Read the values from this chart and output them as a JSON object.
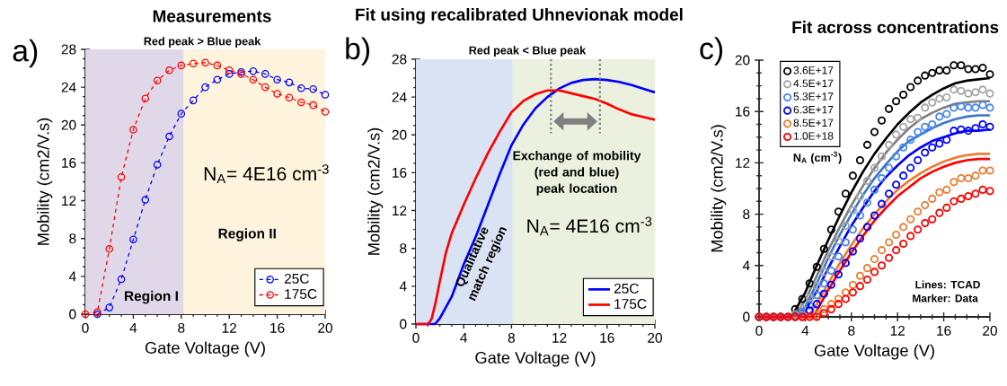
{
  "chart_data": [
    {
      "type": "line",
      "title": "Measurements",
      "subtitle": "Red peak > Blue peak",
      "xlabel": "Gate Voltage (V)",
      "ylabel": "Mobility (cm2/V.s)",
      "xlim": [
        0,
        20
      ],
      "ylim": [
        0,
        28
      ],
      "xticks": [
        0,
        4,
        8,
        12,
        16,
        20
      ],
      "yticks": [
        0,
        4,
        8,
        12,
        16,
        20,
        24,
        28
      ],
      "marker": "circle",
      "line_style": "dashed",
      "legend": "bottom right",
      "bands": [
        {
          "axis": "x",
          "from": 0,
          "to": 8.2,
          "color": "#e0d7e8"
        },
        {
          "axis": "x",
          "from": 8.2,
          "to": 20,
          "color": "#fef4dd"
        }
      ],
      "annotations": [
        "a)",
        "N$_{A}$= 4E16 cm$^{-3}$",
        "Region I",
        "Region II"
      ],
      "series": [
        {
          "name": "25C",
          "color": "#0000ff",
          "x": [
            1,
            2,
            3,
            4,
            5,
            6,
            7,
            8,
            9,
            10,
            11,
            12,
            13,
            14,
            15,
            16,
            17,
            18,
            19,
            20
          ],
          "values": [
            0.0,
            0.7,
            3.7,
            7.9,
            12.1,
            15.8,
            18.8,
            21.2,
            22.6,
            24.0,
            24.8,
            25.4,
            25.6,
            25.7,
            25.4,
            24.8,
            24.5,
            23.9,
            23.8,
            23.2
          ]
        },
        {
          "name": "175C",
          "color": "#ff0000",
          "x": [
            0,
            1,
            2,
            3,
            4,
            5,
            6,
            7,
            8,
            9,
            10,
            11,
            12,
            13,
            14,
            15,
            16,
            17,
            18,
            19,
            20
          ],
          "values": [
            0.0,
            0.2,
            6.9,
            14.5,
            19.5,
            22.8,
            24.7,
            25.8,
            26.3,
            26.5,
            26.6,
            26.3,
            25.8,
            25.4,
            24.8,
            24.0,
            23.3,
            22.9,
            22.4,
            22.1,
            21.4
          ]
        }
      ]
    },
    {
      "type": "line",
      "title": "Fit using recalibrated Uhnevionak model",
      "subtitle": "Red peak < Blue peak",
      "xlabel": "Gate Voltage (V)",
      "ylabel": "Mobility (cm2/V.s)",
      "xlim": [
        0,
        20
      ],
      "ylim": [
        0,
        28
      ],
      "xticks": [
        0,
        4,
        8,
        12,
        16,
        20
      ],
      "yticks": [
        0,
        4,
        8,
        12,
        16,
        20,
        24,
        28
      ],
      "line_style": "solid",
      "legend": "bottom right",
      "bands": [
        {
          "axis": "x",
          "from": 0,
          "to": 8.1,
          "color": "#dae3f3"
        },
        {
          "axis": "x",
          "from": 8.1,
          "to": 20,
          "color": "#ebf1de"
        }
      ],
      "ref_lines": [
        {
          "axis": "x",
          "value": 11.3,
          "color": "#808080",
          "line_style": "dotted"
        },
        {
          "axis": "x",
          "value": 15.4,
          "color": "#808080",
          "line_style": "dotted"
        }
      ],
      "annotations": [
        "b)",
        "Qualitative match region",
        "Exchange of mobility (red and blue) peak location",
        "N$_{A}$= 4E16 cm$^{-3}$"
      ],
      "series": [
        {
          "name": "25C",
          "color": "#0000ff",
          "x": [
            0,
            1.6,
            2,
            3,
            4,
            5,
            6,
            7,
            8,
            9,
            10,
            11,
            12,
            13,
            14,
            15,
            16,
            17,
            18,
            19,
            20
          ],
          "values": [
            0,
            0,
            0.6,
            2.9,
            6.3,
            9.2,
            12.5,
            15.8,
            18.9,
            21.1,
            22.8,
            24.0,
            24.9,
            25.5,
            25.8,
            25.9,
            25.8,
            25.6,
            25.3,
            24.9,
            24.5
          ]
        },
        {
          "name": "175C",
          "color": "#ff0000",
          "x": [
            0,
            1,
            1.3,
            1.6,
            2,
            2.5,
            3,
            4,
            5,
            6,
            7,
            8,
            9,
            10,
            11,
            12,
            13,
            14,
            15,
            16,
            17,
            18,
            19,
            20
          ],
          "values": [
            0,
            0,
            0.5,
            2.0,
            4.5,
            7.5,
            9.6,
            12.6,
            15.4,
            18.0,
            20.3,
            22.4,
            23.6,
            24.3,
            24.7,
            24.7,
            24.4,
            24.1,
            23.8,
            23.3,
            22.7,
            22.2,
            21.9,
            21.6
          ]
        }
      ]
    },
    {
      "type": "scatter",
      "title": "Fit across concentrations",
      "xlabel": "Gate Voltage (V)",
      "ylabel": "Mobility (cm2/V.s)",
      "xlim": [
        0,
        20
      ],
      "ylim": [
        0,
        20
      ],
      "xticks": [
        0,
        4,
        8,
        12,
        16,
        20
      ],
      "yticks": [
        0,
        4,
        8,
        12,
        16,
        20
      ],
      "marker": "circle",
      "legend": "top left",
      "legend_title": "N$_{A}$ (cm$^{-3}$)",
      "annotations": [
        "c)",
        "Lines: TCAD",
        "Marker: Data"
      ],
      "x": [
        0,
        0.625,
        1.25,
        1.875,
        2.5,
        3.125,
        3.75,
        4.375,
        5,
        5.625,
        6.25,
        6.875,
        7.5,
        8.125,
        8.75,
        9.375,
        10,
        10.625,
        11.25,
        11.875,
        12.5,
        13.125,
        13.75,
        14.375,
        15,
        15.625,
        16.25,
        16.875,
        17.5,
        18.125,
        18.75,
        19.375,
        20
      ],
      "series": [
        {
          "name": "3.6E+17",
          "color": "#000000",
          "values": [
            0,
            0,
            0,
            0,
            null,
            0.6,
            1.4,
            2.6,
            3.9,
            5.3,
            6.8,
            8.2,
            9.6,
            11.0,
            12.2,
            13.4,
            14.4,
            15.3,
            16.2,
            16.8,
            17.3,
            17.9,
            18.4,
            18.8,
            19.0,
            19.2,
            19.2,
            19.6,
            19.6,
            19.3,
            19.3,
            19.4,
            18.9
          ]
        },
        {
          "name": "4.5E+17",
          "color": "#a5a5a5",
          "values": [
            0,
            0,
            0,
            0,
            0,
            0.2,
            0.6,
            1.5,
            2.4,
            3.5,
            4.7,
            5.9,
            7.1,
            8.3,
            9.4,
            10.6,
            11.6,
            12.5,
            13.4,
            14.2,
            14.8,
            15.4,
            15.5,
            16.3,
            16.7,
            17.0,
            17.1,
            17.7,
            17.6,
            17.4,
            17.5,
            17.7,
            17.4
          ]
        },
        {
          "name": "5.3E+17",
          "color": "#4a86e8",
          "values": [
            0,
            0,
            0,
            0,
            0,
            0,
            0.4,
            0.9,
            1.7,
            2.6,
            3.6,
            4.7,
            5.8,
            6.8,
            7.9,
            8.9,
            9.9,
            10.8,
            11.6,
            12.5,
            13.2,
            13.8,
            14.4,
            14.8,
            15.0,
            15.6,
            15.8,
            16.3,
            16.4,
            16.3,
            16.3,
            16.5,
            16.3
          ]
        },
        {
          "name": "6.3E+17",
          "color": "#0000ff",
          "values": [
            0,
            0,
            0,
            0,
            0,
            0,
            0,
            0.5,
            1.0,
            1.8,
            2.5,
            3.3,
            4.2,
            5.1,
            6.1,
            7.0,
            7.9,
            8.8,
            9.6,
            10.3,
            11.0,
            11.6,
            12.2,
            12.8,
            13.2,
            13.5,
            13.8,
            14.5,
            14.6,
            14.5,
            14.7,
            15.0,
            14.8
          ]
        },
        {
          "name": "8.5E+17",
          "color": "#ed7d31",
          "values": [
            0,
            0,
            0,
            0,
            0,
            0,
            0,
            0,
            0.2,
            0.6,
            1.0,
            1.4,
            1.9,
            2.5,
            3.2,
            3.8,
            4.5,
            5.2,
            5.8,
            6.4,
            7.0,
            7.6,
            8.2,
            8.7,
            9.2,
            9.7,
            9.9,
            10.5,
            10.8,
            10.8,
            11.0,
            11.4,
            11.4
          ]
        },
        {
          "name": "1.0E+18",
          "color": "#ff0000",
          "values": [
            0,
            0,
            0,
            0,
            0,
            0,
            0,
            0,
            0,
            0.3,
            0.6,
            1.0,
            1.4,
            1.9,
            2.4,
            2.9,
            3.5,
            4.0,
            4.6,
            5.2,
            5.7,
            6.3,
            6.8,
            7.3,
            7.6,
            8.1,
            8.5,
            9.0,
            9.2,
            9.4,
            9.6,
            9.9,
            9.8
          ]
        },
        {
          "type": "line",
          "marker": "none",
          "color": "#000000",
          "x": [
            0,
            2.5,
            3,
            4,
            5,
            6,
            7,
            8,
            9,
            10,
            11,
            12,
            13,
            14,
            15,
            16,
            17,
            18,
            19,
            20
          ],
          "values": [
            0,
            0,
            0.3,
            1.9,
            4.0,
            6.0,
            7.9,
            9.7,
            11.3,
            12.7,
            13.9,
            15.0,
            15.9,
            16.7,
            17.3,
            17.8,
            18.2,
            18.4,
            18.5,
            18.6
          ]
        },
        {
          "type": "line",
          "marker": "none",
          "color": "#7f7f7f",
          "x": [
            0,
            3,
            4,
            5,
            6,
            7,
            8,
            9,
            10,
            11,
            12,
            13,
            14,
            15,
            16,
            17,
            18,
            19,
            20
          ],
          "values": [
            0,
            0,
            1.3,
            3.2,
            5.2,
            7.0,
            8.7,
            10.2,
            11.6,
            12.8,
            13.8,
            14.7,
            15.4,
            15.9,
            16.3,
            16.6,
            16.7,
            16.8,
            16.8
          ]
        },
        {
          "type": "line",
          "marker": "none",
          "color": "#3a78d0",
          "x": [
            0,
            3.2,
            4,
            5,
            6,
            7,
            8,
            9,
            10,
            11,
            12,
            13,
            14,
            15,
            16,
            17,
            18,
            19,
            20
          ],
          "values": [
            0,
            0,
            0.8,
            2.6,
            4.6,
            6.4,
            8.0,
            9.5,
            10.8,
            11.9,
            12.9,
            13.7,
            14.2,
            14.7,
            15.1,
            15.4,
            15.6,
            15.7,
            15.7
          ]
        },
        {
          "type": "line",
          "marker": "none",
          "color": "#0000ff",
          "x": [
            0,
            3.5,
            4,
            5,
            6,
            7,
            8,
            9,
            10,
            11,
            12,
            13,
            14,
            15,
            16,
            17,
            18,
            19,
            20
          ],
          "values": [
            0,
            0,
            0.5,
            2.0,
            3.8,
            5.5,
            7.1,
            8.5,
            9.8,
            10.9,
            11.8,
            12.6,
            13.2,
            13.7,
            14.0,
            14.3,
            14.5,
            14.5,
            14.6
          ]
        },
        {
          "type": "line",
          "marker": "none",
          "color": "#ed7d31",
          "x": [
            0,
            4.2,
            5,
            6,
            7,
            8,
            9,
            10,
            11,
            12,
            13,
            14,
            15,
            16,
            17,
            18,
            19,
            20
          ],
          "values": [
            0,
            0,
            1.0,
            2.6,
            4.2,
            5.6,
            6.9,
            8.0,
            9.0,
            9.9,
            10.6,
            11.2,
            11.7,
            12.1,
            12.4,
            12.6,
            12.7,
            12.7
          ]
        },
        {
          "type": "line",
          "marker": "none",
          "color": "#ff0000",
          "x": [
            0,
            4.5,
            5,
            6,
            7,
            8,
            9,
            10,
            11,
            12,
            13,
            14,
            15,
            16,
            17,
            18,
            19,
            20
          ],
          "values": [
            0,
            0,
            0.5,
            2.1,
            3.6,
            5.0,
            6.3,
            7.5,
            8.5,
            9.4,
            10.1,
            10.8,
            11.3,
            11.7,
            12.0,
            12.2,
            12.3,
            12.3
          ]
        }
      ]
    }
  ]
}
